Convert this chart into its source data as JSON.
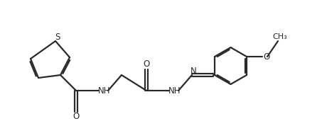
{
  "bg_color": "#ffffff",
  "line_color": "#2a2a2a",
  "line_width": 1.6,
  "text_color": "#2a2a2a",
  "font_size": 8.5,
  "figsize": [
    4.53,
    1.78
  ],
  "dpi": 100,
  "xlim": [
    0,
    4.53
  ],
  "ylim": [
    0,
    1.78
  ]
}
